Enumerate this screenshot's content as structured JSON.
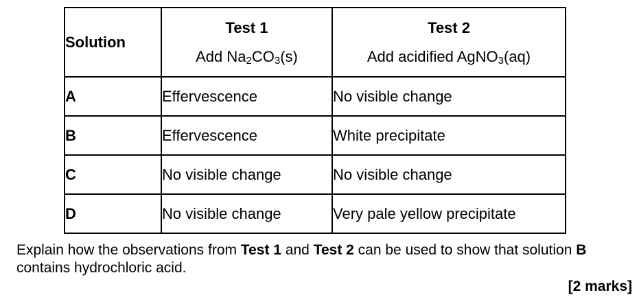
{
  "table": {
    "header": {
      "solution": "Solution",
      "test1": {
        "name": "Test 1",
        "add": "Add Na",
        "sub1": "2",
        "mid": "CO",
        "sub2": "3",
        "end": "(s)"
      },
      "test2": {
        "name": "Test 2",
        "add": "Add acidified AgNO",
        "sub1": "3",
        "end": "(aq)"
      }
    },
    "rows": [
      {
        "solution": "A",
        "test1": "Effervescence",
        "test2": "No visible change"
      },
      {
        "solution": "B",
        "test1": "Effervescence",
        "test2": "White precipitate"
      },
      {
        "solution": "C",
        "test1": "No visible change",
        "test2": "No visible change"
      },
      {
        "solution": "D",
        "test1": "No visible change",
        "test2": "Very pale yellow precipitate"
      }
    ]
  },
  "question": {
    "part1": "Explain how the observations from ",
    "bold1": "Test 1",
    "part2": " and ",
    "bold2": "Test 2",
    "part3": " can be used to show that solution ",
    "bold3": "B",
    "part4": " contains hydrochloric acid."
  },
  "marks": "[2 marks]"
}
